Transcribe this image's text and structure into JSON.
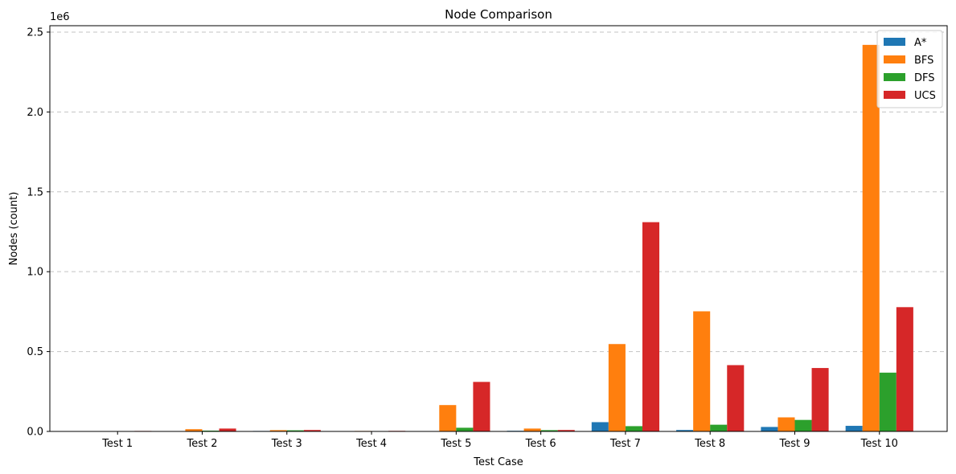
{
  "chart_data": {
    "type": "bar",
    "title": "Node Comparison",
    "xlabel": "Test Case",
    "ylabel": "Nodes (count)",
    "y_offset_text": "1e6",
    "ylim": [
      0,
      2540000
    ],
    "yticks": [
      0,
      500000,
      1000000,
      1500000,
      2000000,
      2500000
    ],
    "ytick_labels": [
      "0.0",
      "0.5",
      "1.0",
      "1.5",
      "2.0",
      "2.5"
    ],
    "grid": "y-dashed",
    "legend_position": "top-right",
    "categories": [
      "Test 1",
      "Test 2",
      "Test 3",
      "Test 4",
      "Test 5",
      "Test 6",
      "Test 7",
      "Test 8",
      "Test 9",
      "Test 10"
    ],
    "series": [
      {
        "name": "A*",
        "color": "#1f77b4",
        "values": [
          300,
          1500,
          3000,
          800,
          2000,
          4000,
          58000,
          9000,
          28000,
          35000
        ]
      },
      {
        "name": "BFS",
        "color": "#ff7f0e",
        "values": [
          2000,
          14000,
          8000,
          3000,
          165000,
          18000,
          547000,
          752000,
          88000,
          2420000
        ]
      },
      {
        "name": "DFS",
        "color": "#2ca02c",
        "values": [
          400,
          5000,
          7000,
          1000,
          23000,
          8000,
          33000,
          42000,
          72000,
          368000
        ]
      },
      {
        "name": "UCS",
        "color": "#d62728",
        "values": [
          3000,
          18000,
          9000,
          3500,
          310000,
          9000,
          1310000,
          415000,
          397000,
          778000
        ]
      }
    ]
  }
}
